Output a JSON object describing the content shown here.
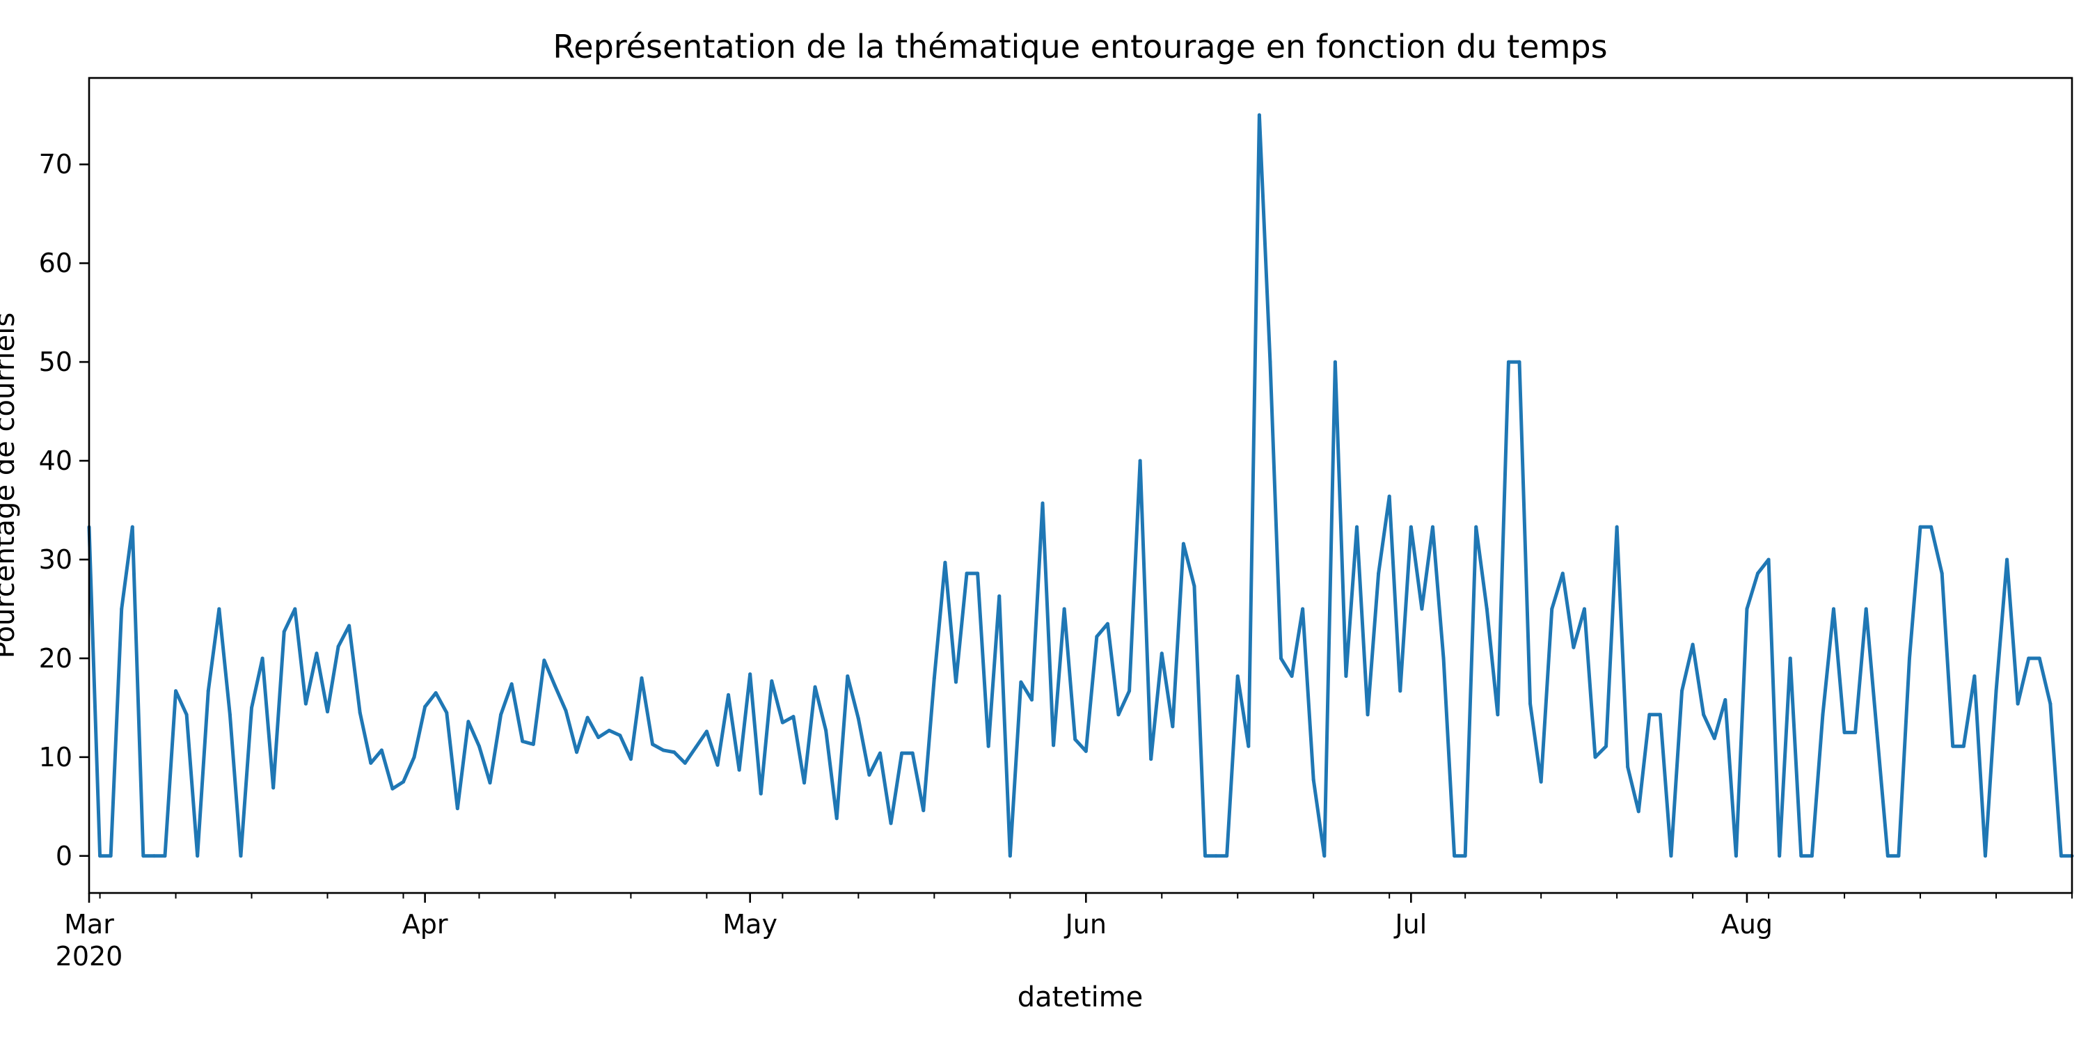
{
  "chart_data": {
    "type": "line",
    "title": "Représentation de la thématique entourage en fonction du temps",
    "xlabel": "datetime",
    "ylabel": "Pourcentage de courriels",
    "x_start": "2020-03-01",
    "x_end": "2020-08-31",
    "ylim": [
      -3.75,
      78.75
    ],
    "yticks": [
      0,
      10,
      20,
      30,
      40,
      50,
      60,
      70
    ],
    "xticks": [
      {
        "date": "2020-03-01",
        "label": "Mar",
        "sublabel": "2020"
      },
      {
        "date": "2020-04-01",
        "label": "Apr",
        "sublabel": ""
      },
      {
        "date": "2020-05-01",
        "label": "May",
        "sublabel": ""
      },
      {
        "date": "2020-06-01",
        "label": "Jun",
        "sublabel": ""
      },
      {
        "date": "2020-07-01",
        "label": "Jul",
        "sublabel": ""
      },
      {
        "date": "2020-08-01",
        "label": "Aug",
        "sublabel": ""
      }
    ],
    "grid": false,
    "legend": "none",
    "colors": {
      "series": "#1f77b4",
      "axes": "#000000",
      "background": "#ffffff"
    },
    "series": [
      {
        "x": [
          "2020-03-01",
          "2020-03-02",
          "2020-03-03",
          "2020-03-04",
          "2020-03-05",
          "2020-03-06",
          "2020-03-07",
          "2020-03-08",
          "2020-03-09",
          "2020-03-10",
          "2020-03-11",
          "2020-03-12",
          "2020-03-13",
          "2020-03-14",
          "2020-03-15",
          "2020-03-16",
          "2020-03-17",
          "2020-03-18",
          "2020-03-19",
          "2020-03-20",
          "2020-03-21",
          "2020-03-22",
          "2020-03-23",
          "2020-03-24",
          "2020-03-25",
          "2020-03-26",
          "2020-03-27",
          "2020-03-28",
          "2020-03-29",
          "2020-03-30",
          "2020-03-31",
          "2020-04-01",
          "2020-04-02",
          "2020-04-03",
          "2020-04-04",
          "2020-04-05",
          "2020-04-06",
          "2020-04-07",
          "2020-04-08",
          "2020-04-09",
          "2020-04-10",
          "2020-04-11",
          "2020-04-12",
          "2020-04-13",
          "2020-04-14",
          "2020-04-15",
          "2020-04-16",
          "2020-04-17",
          "2020-04-18",
          "2020-04-19",
          "2020-04-20",
          "2020-04-21",
          "2020-04-22",
          "2020-04-23",
          "2020-04-24",
          "2020-04-25",
          "2020-04-26",
          "2020-04-27",
          "2020-04-28",
          "2020-04-29",
          "2020-04-30",
          "2020-05-01",
          "2020-05-02",
          "2020-05-03",
          "2020-05-04",
          "2020-05-05",
          "2020-05-06",
          "2020-05-07",
          "2020-05-08",
          "2020-05-09",
          "2020-05-10",
          "2020-05-11",
          "2020-05-12",
          "2020-05-13",
          "2020-05-14",
          "2020-05-15",
          "2020-05-16",
          "2020-05-17",
          "2020-05-18",
          "2020-05-19",
          "2020-05-20",
          "2020-05-21",
          "2020-05-22",
          "2020-05-23",
          "2020-05-24",
          "2020-05-25",
          "2020-05-26",
          "2020-05-27",
          "2020-05-28",
          "2020-05-29",
          "2020-05-30",
          "2020-05-31",
          "2020-06-01",
          "2020-06-02",
          "2020-06-03",
          "2020-06-04",
          "2020-06-05",
          "2020-06-06",
          "2020-06-07",
          "2020-06-08",
          "2020-06-09",
          "2020-06-10",
          "2020-06-11",
          "2020-06-12",
          "2020-06-13",
          "2020-06-14",
          "2020-06-15",
          "2020-06-16",
          "2020-06-17",
          "2020-06-18",
          "2020-06-19",
          "2020-06-20",
          "2020-06-21",
          "2020-06-22",
          "2020-06-23",
          "2020-06-24",
          "2020-06-25",
          "2020-06-26",
          "2020-06-27",
          "2020-06-28",
          "2020-06-29",
          "2020-06-30",
          "2020-07-01",
          "2020-07-02",
          "2020-07-03",
          "2020-07-04",
          "2020-07-05",
          "2020-07-06",
          "2020-07-07",
          "2020-07-08",
          "2020-07-09",
          "2020-07-10",
          "2020-07-11",
          "2020-07-12",
          "2020-07-13",
          "2020-07-14",
          "2020-07-15",
          "2020-07-16",
          "2020-07-17",
          "2020-07-18",
          "2020-07-19",
          "2020-07-20",
          "2020-07-21",
          "2020-07-22",
          "2020-07-23",
          "2020-07-24",
          "2020-07-25",
          "2020-07-26",
          "2020-07-27",
          "2020-07-28",
          "2020-07-29",
          "2020-07-30",
          "2020-07-31",
          "2020-08-01",
          "2020-08-02",
          "2020-08-03",
          "2020-08-04",
          "2020-08-05",
          "2020-08-06",
          "2020-08-07",
          "2020-08-08",
          "2020-08-09",
          "2020-08-10",
          "2020-08-11",
          "2020-08-12",
          "2020-08-13",
          "2020-08-14",
          "2020-08-15",
          "2020-08-16",
          "2020-08-17",
          "2020-08-18",
          "2020-08-19",
          "2020-08-20",
          "2020-08-21",
          "2020-08-22",
          "2020-08-23",
          "2020-08-24",
          "2020-08-25",
          "2020-08-26",
          "2020-08-27",
          "2020-08-28",
          "2020-08-29",
          "2020-08-30",
          "2020-08-31"
        ],
        "values": [
          33.3,
          0,
          0,
          25,
          33.3,
          0,
          0,
          0,
          16.7,
          14.3,
          0,
          16.7,
          25,
          14.3,
          0,
          15,
          20,
          6.9,
          22.7,
          25,
          15.4,
          20.5,
          14.6,
          21.2,
          23.3,
          14.5,
          9.4,
          10.7,
          6.8,
          7.5,
          10,
          15.1,
          16.5,
          14.5,
          4.8,
          13.6,
          11.1,
          7.4,
          14.3,
          17.4,
          11.6,
          11.3,
          19.8,
          17.2,
          14.7,
          10.5,
          14,
          12,
          12.7,
          12.2,
          9.8,
          18,
          11.3,
          10.7,
          10.5,
          9.4,
          11,
          12.6,
          9.2,
          16.3,
          8.7,
          18.4,
          6.3,
          17.7,
          13.5,
          14.1,
          7.4,
          17.1,
          12.7,
          3.8,
          18.2,
          13.9,
          8.2,
          10.4,
          3.3,
          10.4,
          10.4,
          4.6,
          18,
          29.7,
          17.6,
          28.6,
          28.6,
          11.1,
          26.3,
          0,
          17.6,
          15.8,
          35.7,
          11.2,
          25,
          11.8,
          10.6,
          22.2,
          23.5,
          14.3,
          16.7,
          40,
          9.8,
          20.5,
          13.1,
          31.6,
          27.3,
          0,
          0,
          0,
          18.2,
          11.1,
          75,
          50,
          20,
          18.2,
          25,
          7.7,
          0,
          50,
          18.2,
          33.3,
          14.3,
          28.6,
          36.4,
          16.7,
          33.3,
          25,
          33.3,
          20,
          0,
          0,
          33.3,
          25,
          14.3,
          50,
          50,
          15.4,
          7.5,
          25,
          28.6,
          21.1,
          25,
          10,
          11.1,
          33.3,
          9,
          4.5,
          14.3,
          14.3,
          0,
          16.7,
          21.4,
          14.3,
          11.9,
          15.8,
          0,
          25,
          28.6,
          30,
          0,
          20,
          0,
          0,
          14.3,
          25,
          12.5,
          12.5,
          25,
          12.5,
          0,
          0,
          20,
          33.3,
          33.3,
          28.6,
          11.1,
          11.1,
          18.2,
          0,
          16.7,
          30,
          15.4,
          20,
          20,
          15.4,
          0,
          0
        ]
      }
    ]
  }
}
